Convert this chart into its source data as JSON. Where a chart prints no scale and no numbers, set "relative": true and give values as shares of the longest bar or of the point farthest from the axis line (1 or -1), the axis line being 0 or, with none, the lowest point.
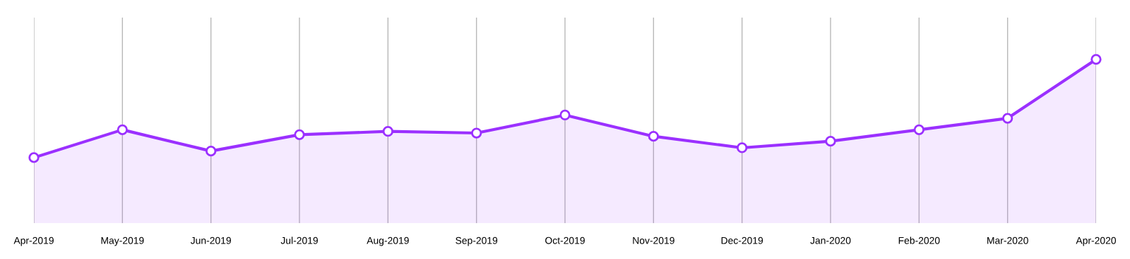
{
  "chart_data": {
    "type": "area",
    "relative": true,
    "categories": [
      "Apr-2019",
      "May-2019",
      "Jun-2019",
      "Jul-2019",
      "Aug-2019",
      "Sep-2019",
      "Oct-2019",
      "Nov-2019",
      "Dec-2019",
      "Jan-2020",
      "Feb-2020",
      "Mar-2020",
      "Apr-2020"
    ],
    "series": [
      {
        "color": "#9b30ff",
        "values": [
          0.4,
          0.57,
          0.44,
          0.54,
          0.56,
          0.55,
          0.66,
          0.53,
          0.46,
          0.5,
          0.57,
          0.64,
          1.0
        ]
      }
    ],
    "grid": "x",
    "marker": "circle",
    "line_style": "solid",
    "legend": false
  }
}
